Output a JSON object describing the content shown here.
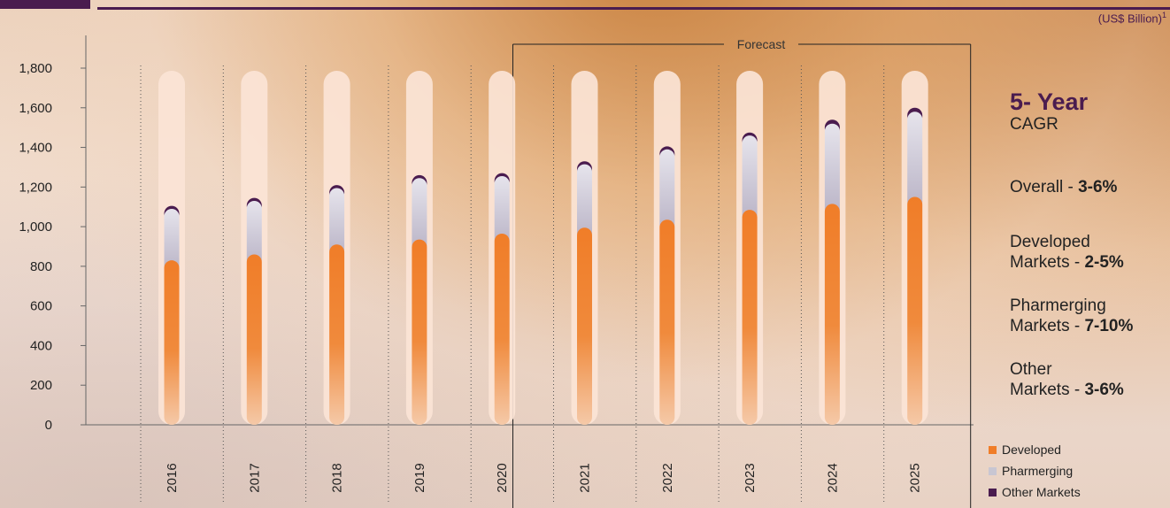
{
  "header": {
    "unit_label": "(US$ Billion)",
    "unit_sup": "1"
  },
  "chart_data": {
    "type": "bar",
    "stacked": true,
    "categories": [
      "2016",
      "2017",
      "2018",
      "2019",
      "2020",
      "2021",
      "2022",
      "2023",
      "2024",
      "2025"
    ],
    "series": [
      {
        "name": "Developed",
        "color": "#f07d28",
        "values": [
          830,
          860,
          910,
          935,
          965,
          995,
          1035,
          1085,
          1115,
          1150
        ]
      },
      {
        "name": "Pharmerging",
        "color": "#c8c6d2",
        "values": [
          260,
          270,
          285,
          310,
          290,
          320,
          355,
          375,
          405,
          430
        ]
      },
      {
        "name": "Other Markets",
        "color": "#4a1c4f",
        "values": [
          15,
          15,
          15,
          15,
          15,
          15,
          15,
          15,
          20,
          20
        ]
      }
    ],
    "yticks": [
      "1,800",
      "1,600",
      "1,400",
      "1,200",
      "1,000",
      "800",
      "600",
      "400",
      "200",
      "0"
    ],
    "ylim": [
      0,
      1800
    ],
    "forecast": {
      "label": "Forecast",
      "from": "2021",
      "to": "2025"
    },
    "legend_position": "bottom-right"
  },
  "cagr": {
    "title": "5- Year",
    "subtitle": "CAGR",
    "items": [
      {
        "label": "Overall - ",
        "value": "3-6%"
      },
      {
        "label_line1": "Developed",
        "label_line2": "Markets - ",
        "value": "2-5%"
      },
      {
        "label_line1": "Pharmerging",
        "label_line2": "Markets - ",
        "value": "7-10%"
      },
      {
        "label_line1": "Other",
        "label_line2": "Markets - ",
        "value": "3-6%"
      }
    ]
  },
  "legend": [
    {
      "name": "Developed",
      "color": "#f07d28"
    },
    {
      "name": "Pharmerging",
      "color": "#c8c6d2"
    },
    {
      "name": "Other Markets",
      "color": "#4a1c4f"
    }
  ]
}
